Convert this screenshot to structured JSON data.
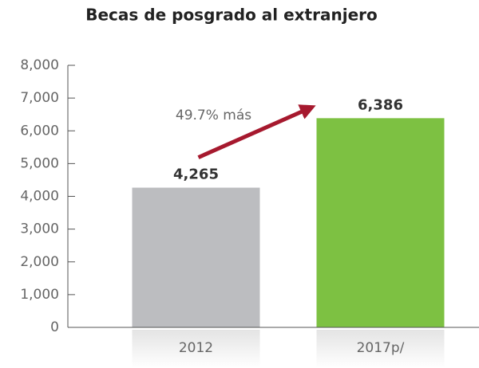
{
  "chart_data": {
    "type": "bar",
    "title": "Becas de posgrado al extranjero",
    "categories": [
      "2012",
      "2017p/"
    ],
    "values": [
      4265,
      6386
    ],
    "value_labels": [
      "4,265",
      "6,386"
    ],
    "colors": [
      "#bcbdc0",
      "#7dc142"
    ],
    "annotation": "49.7% más",
    "arrow_color": "#a6192e",
    "ylim": [
      0,
      8000
    ],
    "yticks": [
      0,
      {
        "value": 1000,
        "label": "1,000"
      },
      {
        "value": 2000,
        "label": "2,000"
      },
      {
        "value": 3000,
        "label": "3,000"
      },
      {
        "value": 4000,
        "label": "4,000"
      },
      {
        "value": 5000,
        "label": "5,000"
      },
      {
        "value": 6000,
        "label": "6,000"
      },
      {
        "value": 7000,
        "label": "7,000"
      },
      {
        "value": 8000,
        "label": "8,000"
      }
    ]
  }
}
